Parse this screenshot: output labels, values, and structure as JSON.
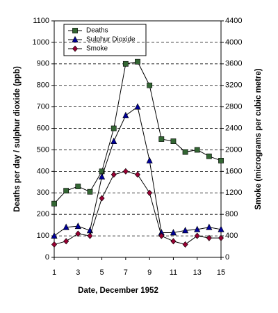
{
  "chart_data": {
    "type": "line",
    "x_label": "Date, December 1952",
    "y_label": "Deaths per day / sulphur dioxide (ppb)",
    "y2_label": "Smoke (micrograms per cubic metre)",
    "x": [
      1,
      2,
      3,
      4,
      5,
      6,
      7,
      8,
      9,
      10,
      11,
      12,
      13,
      14,
      15
    ],
    "xlim": [
      1,
      15
    ],
    "xticks": [
      1,
      3,
      5,
      7,
      9,
      11,
      13,
      15
    ],
    "ylim": [
      0,
      1100
    ],
    "yticks": [
      0,
      100,
      200,
      300,
      400,
      500,
      600,
      700,
      800,
      900,
      1000,
      1100
    ],
    "y2lim": [
      0,
      4400
    ],
    "y2ticks": [
      0,
      400,
      800,
      1200,
      1600,
      2000,
      2400,
      2800,
      3200,
      3600,
      4000,
      4400
    ],
    "grid": true,
    "legend": "upper left",
    "series": [
      {
        "name": "Deaths",
        "color": "#336633",
        "marker": "square",
        "values": [
          250,
          310,
          330,
          305,
          400,
          600,
          900,
          910,
          800,
          550,
          540,
          490,
          500,
          470,
          450
        ]
      },
      {
        "name": "Sulphur Dioxide",
        "color": "#000099",
        "marker": "triangle",
        "values": [
          100,
          140,
          145,
          125,
          375,
          540,
          660,
          700,
          450,
          115,
          115,
          125,
          130,
          140,
          130
        ]
      },
      {
        "name": "Smoke",
        "color": "#990033",
        "marker": "diamond",
        "axis": "y2",
        "values": [
          240,
          300,
          440,
          400,
          1100,
          1540,
          1600,
          1540,
          1200,
          400,
          300,
          240,
          400,
          360,
          360
        ]
      }
    ]
  }
}
